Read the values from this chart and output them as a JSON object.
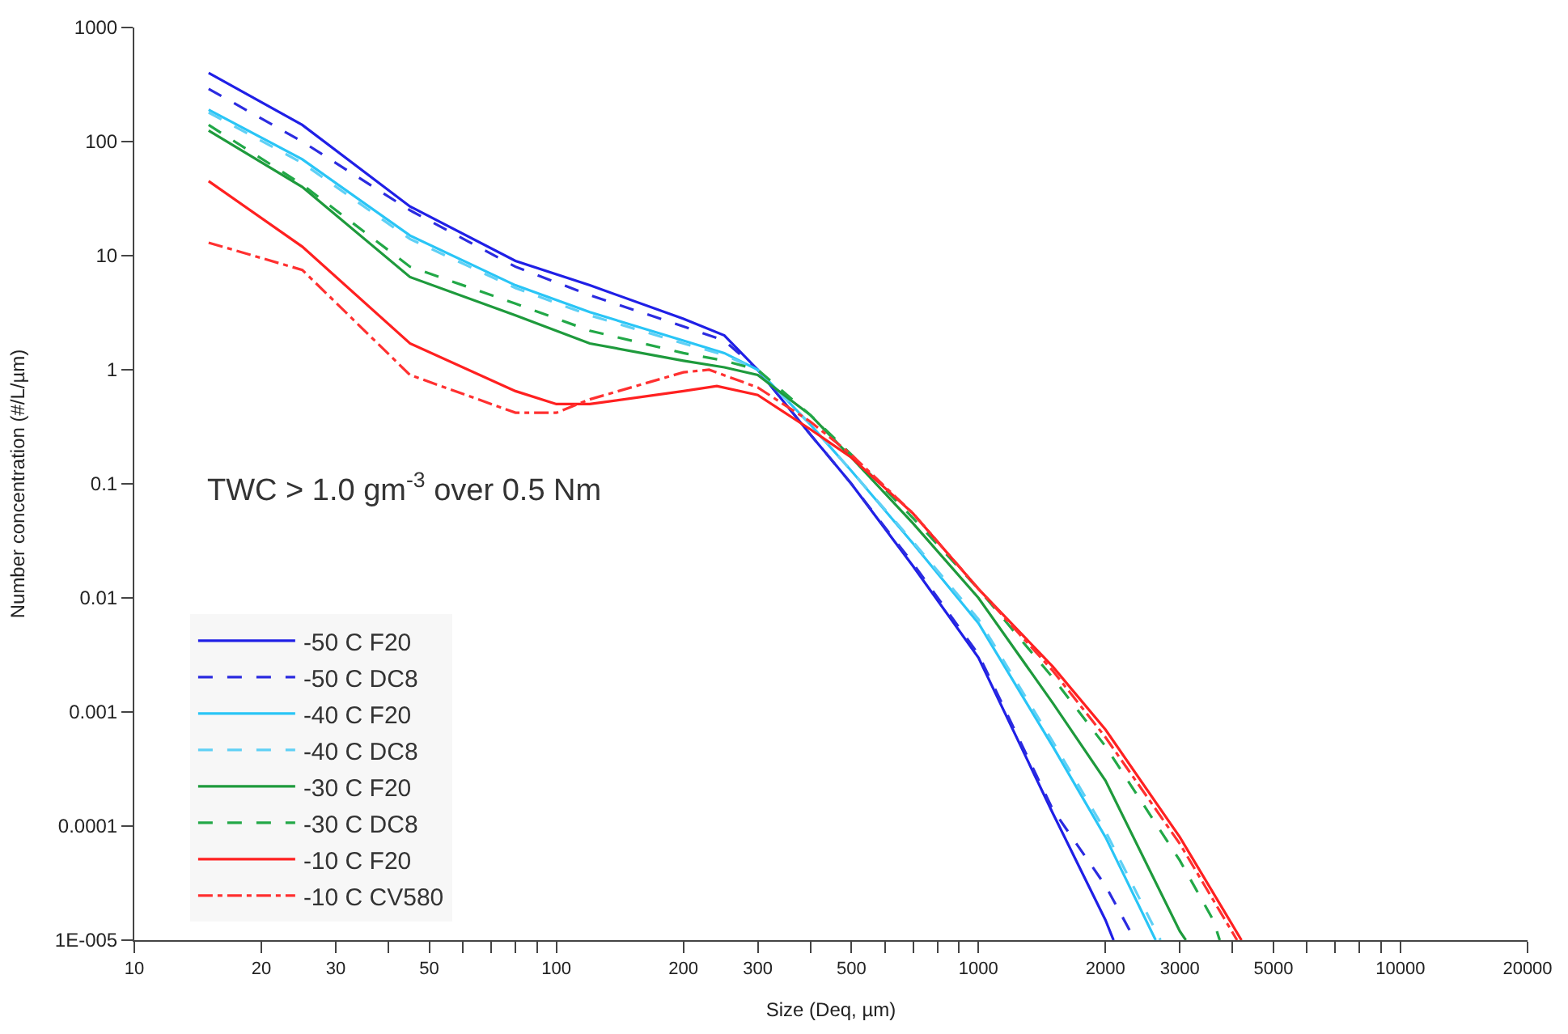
{
  "chart_data": {
    "type": "line",
    "xlabel": "Size (Deq, µm)",
    "ylabel": "Number concentration (#/L/µm)",
    "annotations": [
      "TWC > 1.0 gm$^{-3}$ over 0.5 Nm"
    ],
    "log": "xy",
    "legend": "bottom left",
    "marker": "none",
    "xlim": [
      10,
      20000
    ],
    "ylim": [
      1e-05,
      1000
    ],
    "xticks": [
      10,
      20,
      30,
      {
        "value": 40,
        "label": null
      },
      50,
      {
        "value": 60,
        "label": null
      },
      {
        "value": 70,
        "label": null
      },
      {
        "value": 80,
        "label": null
      },
      {
        "value": 90,
        "label": null
      },
      100,
      200,
      300,
      {
        "value": 400,
        "label": null
      },
      500,
      {
        "value": 600,
        "label": null
      },
      {
        "value": 700,
        "label": null
      },
      {
        "value": 800,
        "label": null
      },
      {
        "value": 900,
        "label": null
      },
      1000,
      2000,
      3000,
      {
        "value": 4000,
        "label": null
      },
      5000,
      {
        "value": 6000,
        "label": null
      },
      {
        "value": 7000,
        "label": null
      },
      {
        "value": 8000,
        "label": null
      },
      {
        "value": 9000,
        "label": null
      },
      10000,
      20000
    ],
    "yticks": [
      {
        "value": 1e-05,
        "label": "1E-005"
      },
      0.0001,
      0.001,
      0.01,
      0.1,
      1,
      10,
      100,
      1000
    ],
    "series": [
      {
        "name": "-50 C F20",
        "color": "#1f1fe6",
        "line_style": "solid",
        "x": [
          15,
          25,
          45,
          80,
          120,
          200,
          250,
          300,
          400,
          500,
          700,
          1000,
          1500,
          2000,
          2090
        ],
        "values": [
          400,
          140,
          27,
          9,
          5.5,
          2.8,
          2.0,
          1.0,
          0.27,
          0.1,
          0.019,
          0.003,
          0.00013,
          1.5e-05,
          1e-05
        ]
      },
      {
        "name": "-50 C DC8",
        "color": "#2b2be0",
        "line_style": "dashed",
        "x": [
          15,
          25,
          45,
          80,
          120,
          200,
          250,
          300,
          400,
          500,
          700,
          1000,
          1500,
          2000,
          2350
        ],
        "values": [
          290,
          100,
          25,
          8,
          4.5,
          2.4,
          1.8,
          1.0,
          0.27,
          0.1,
          0.02,
          0.0032,
          0.00014,
          3e-05,
          1e-05
        ]
      },
      {
        "name": "-40 C F20",
        "color": "#29c5f6",
        "line_style": "solid",
        "x": [
          15,
          25,
          45,
          80,
          120,
          200,
          250,
          300,
          400,
          500,
          700,
          1000,
          1500,
          2000,
          2630
        ],
        "values": [
          190,
          70,
          15,
          5.5,
          3.2,
          1.8,
          1.4,
          1.0,
          0.33,
          0.13,
          0.03,
          0.006,
          0.0005,
          8e-05,
          1e-05
        ]
      },
      {
        "name": "-40 C DC8",
        "color": "#5fd0f5",
        "line_style": "dashed",
        "x": [
          15,
          25,
          45,
          80,
          120,
          200,
          250,
          300,
          400,
          500,
          700,
          1000,
          1500,
          2000,
          2700
        ],
        "values": [
          180,
          65,
          14,
          5.2,
          3.0,
          1.7,
          1.35,
          1.0,
          0.33,
          0.13,
          0.031,
          0.0065,
          0.00055,
          9e-05,
          1e-05
        ]
      },
      {
        "name": "-30 C F20",
        "color": "#1e9a3c",
        "line_style": "solid",
        "x": [
          15,
          25,
          45,
          80,
          120,
          200,
          250,
          300,
          400,
          500,
          700,
          1000,
          1500,
          2000,
          3000,
          3100
        ],
        "values": [
          125,
          40,
          6.5,
          3,
          1.7,
          1.2,
          1.05,
          0.9,
          0.4,
          0.17,
          0.045,
          0.01,
          0.0012,
          0.00025,
          1.2e-05,
          1e-05
        ]
      },
      {
        "name": "-30 C DC8",
        "color": "#22a847",
        "line_style": "dashed",
        "x": [
          15,
          25,
          45,
          80,
          120,
          200,
          250,
          300,
          400,
          500,
          700,
          1000,
          1500,
          2000,
          3000,
          3600,
          3730
        ],
        "values": [
          140,
          42,
          8,
          3.8,
          2.2,
          1.4,
          1.2,
          1.0,
          0.4,
          0.18,
          0.05,
          0.012,
          0.002,
          0.0005,
          5e-05,
          1.5e-05,
          1e-05
        ]
      },
      {
        "name": "-10 C F20",
        "color": "#ff2020",
        "line_style": "solid",
        "x": [
          15,
          25,
          45,
          80,
          100,
          120,
          200,
          240,
          300,
          400,
          500,
          700,
          1000,
          1500,
          2000,
          3000,
          4200
        ],
        "values": [
          45,
          12,
          1.7,
          0.65,
          0.5,
          0.5,
          0.65,
          0.72,
          0.6,
          0.3,
          0.17,
          0.055,
          0.012,
          0.0025,
          0.0007,
          8e-05,
          1e-05
        ]
      },
      {
        "name": "-10 C CV580",
        "color": "#ff3030",
        "line_style": "dashdot",
        "x": [
          15,
          25,
          45,
          80,
          100,
          120,
          200,
          230,
          300,
          400,
          500,
          700,
          1000,
          1500,
          2000,
          3000,
          4100
        ],
        "values": [
          13,
          7.5,
          0.9,
          0.42,
          0.42,
          0.55,
          0.95,
          1.0,
          0.7,
          0.35,
          0.18,
          0.055,
          0.012,
          0.0023,
          0.0006,
          7e-05,
          1e-05
        ]
      }
    ]
  }
}
